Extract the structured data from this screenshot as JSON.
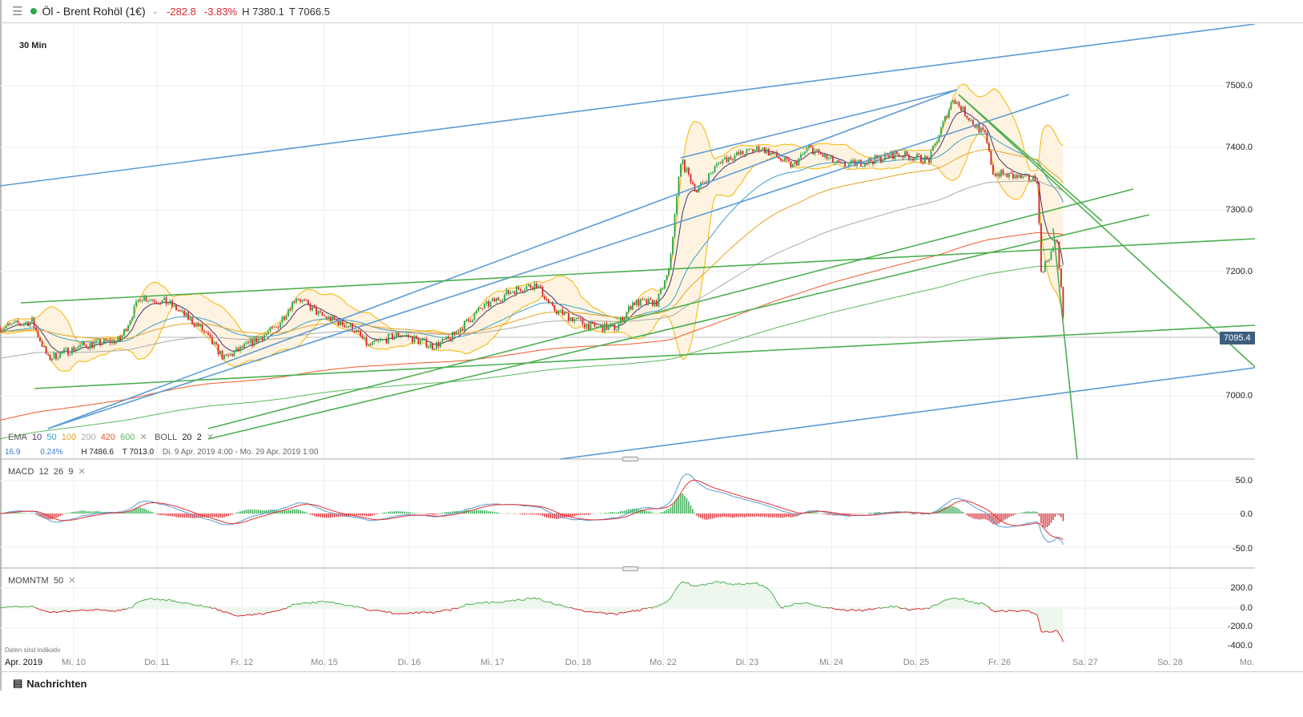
{
  "header": {
    "instrument": "Öl - Brent Rohöl (1€)",
    "change": "-282.8",
    "change_pct": "-3.83%",
    "high": "H 7380.1",
    "low": "T 7066.5"
  },
  "interval": "30 Min",
  "price_axis": [
    "7500.0",
    "7400.0",
    "7300.0",
    "7200.0",
    "7095.4",
    "7000.0"
  ],
  "current_price": "7095.4",
  "indicators": {
    "ema": {
      "label": "EMA",
      "periods": [
        "10",
        "50",
        "100",
        "200",
        "420",
        "600"
      ],
      "colors": [
        "#4a2f6b",
        "#3aa0c8",
        "#e8a020",
        "#aaaaaa",
        "#f05a28",
        "#5cb85c"
      ]
    },
    "boll": {
      "label": "BOLL",
      "p1": "20",
      "p2": "2"
    },
    "info": {
      "v1": "16.9",
      "v2": "0.24%",
      "high": "H 7486.6",
      "low": "T 7013.0",
      "range": "Di. 9 Apr. 2019 4:00 - Mo. 29 Apr. 2019 1:00"
    }
  },
  "macd": {
    "label": "MACD",
    "params": [
      "12",
      "26",
      "9"
    ],
    "axis": [
      "50.0",
      "0.0",
      "-50.0"
    ]
  },
  "momentum": {
    "label": "MOMNTM",
    "param": "50",
    "axis": [
      "200.0",
      "0.0",
      "-200.0",
      "-400.0"
    ]
  },
  "disclaimer": "Daten sind indikativ",
  "x_axis": {
    "month": "Apr. 2019",
    "days": [
      "Mi. 10",
      "Do. 11",
      "Fr. 12",
      "Mo. 15",
      "Di. 16",
      "Mi. 17",
      "Do. 18",
      "Mo. 22",
      "Di. 23",
      "Mi. 24",
      "Do. 25",
      "Fr. 26",
      "Sa. 27",
      "So. 28",
      "Mo."
    ]
  },
  "footer": {
    "news": "Nachrichten"
  }
}
